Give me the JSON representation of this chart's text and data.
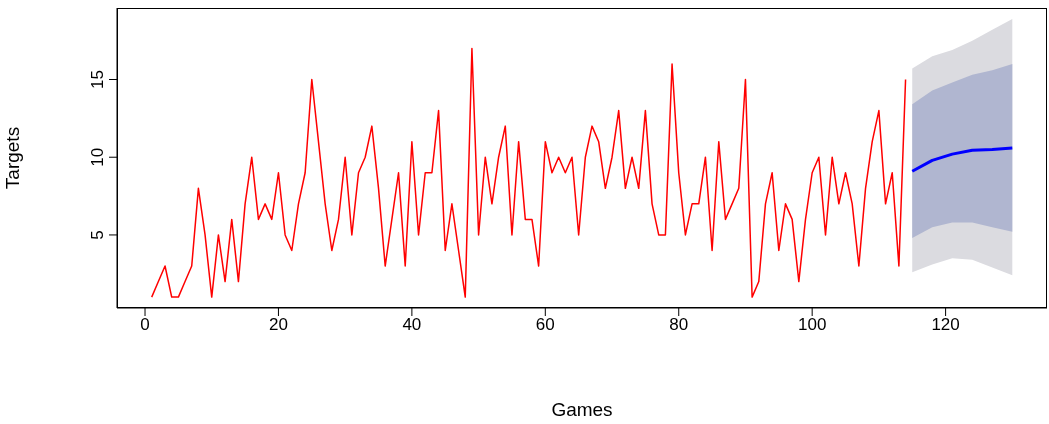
{
  "chart_data": {
    "type": "line",
    "xlabel": "Games",
    "ylabel": "Targets",
    "xlim": [
      -4.2,
      135.2
    ],
    "xticks": [
      0,
      20,
      40,
      60,
      80,
      100,
      120
    ],
    "ylim": [
      0.3,
      19.6
    ],
    "yticks": [
      5,
      10,
      15
    ],
    "series": [
      {
        "color": "#ff0000",
        "x": [
          1,
          2,
          3,
          4,
          5,
          6,
          7,
          8,
          9,
          10,
          11,
          12,
          13,
          14,
          15,
          16,
          17,
          18,
          19,
          20,
          21,
          22,
          23,
          24,
          25,
          26,
          27,
          28,
          29,
          30,
          31,
          32,
          33,
          34,
          35,
          36,
          37,
          38,
          39,
          40,
          41,
          42,
          43,
          44,
          45,
          46,
          47,
          48,
          49,
          50,
          51,
          52,
          53,
          54,
          55,
          56,
          57,
          58,
          59,
          60,
          61,
          62,
          63,
          64,
          65,
          66,
          67,
          68,
          69,
          70,
          71,
          72,
          73,
          74,
          75,
          76,
          77,
          78,
          79,
          80,
          81,
          82,
          83,
          84,
          85,
          86,
          87,
          88,
          89,
          90,
          91,
          92,
          93,
          94,
          95,
          96,
          97,
          98,
          99,
          100,
          101,
          102,
          103,
          104,
          105,
          106,
          107,
          108,
          109,
          110,
          111,
          112,
          113,
          114
        ],
        "values": [
          1,
          2,
          3,
          1,
          1,
          2,
          3,
          8,
          5,
          1,
          5,
          2,
          6,
          2,
          7,
          10,
          6,
          7,
          6,
          9,
          5,
          4,
          7,
          9,
          15,
          11,
          7,
          4,
          6,
          10,
          5,
          9,
          10,
          12,
          8,
          3,
          6,
          9,
          3,
          11,
          5,
          9,
          9,
          13,
          4,
          7,
          4,
          1,
          17,
          5,
          10,
          7,
          10,
          12,
          5,
          11,
          6,
          6,
          3,
          11,
          9,
          10,
          9,
          10,
          5,
          10,
          12,
          11,
          8,
          10,
          13,
          8,
          10,
          8,
          13,
          7,
          5,
          5,
          16,
          9,
          5,
          7,
          7,
          10,
          4,
          11,
          6,
          7,
          8,
          15,
          1,
          2,
          7,
          9,
          4,
          7,
          6,
          2,
          6,
          9,
          10,
          5,
          10,
          7,
          9,
          7,
          3,
          8,
          11,
          13,
          7,
          9,
          3,
          15
        ]
      },
      {
        "type": "area",
        "color": "#dbdbe0",
        "x": [
          115,
          118,
          121,
          124,
          127,
          130
        ],
        "values": [
          null,
          null,
          null,
          null,
          null,
          null
        ],
        "lower": [
          2.6,
          3.1,
          3.5,
          3.4,
          2.9,
          2.4
        ],
        "upper": [
          15.7,
          16.5,
          16.9,
          17.5,
          18.2,
          18.9
        ]
      },
      {
        "type": "area",
        "color": "#b0b6d0",
        "x": [
          115,
          118,
          121,
          124,
          127,
          130
        ],
        "values": [
          null,
          null,
          null,
          null,
          null,
          null
        ],
        "lower": [
          4.8,
          5.5,
          5.8,
          5.8,
          5.5,
          5.2
        ],
        "upper": [
          13.4,
          14.3,
          14.8,
          15.3,
          15.6,
          16.0
        ]
      },
      {
        "color": "#0000ff",
        "x": [
          115,
          118,
          121,
          124,
          127,
          130
        ],
        "values": [
          9.1,
          9.8,
          10.2,
          10.45,
          10.5,
          10.6
        ]
      }
    ]
  }
}
